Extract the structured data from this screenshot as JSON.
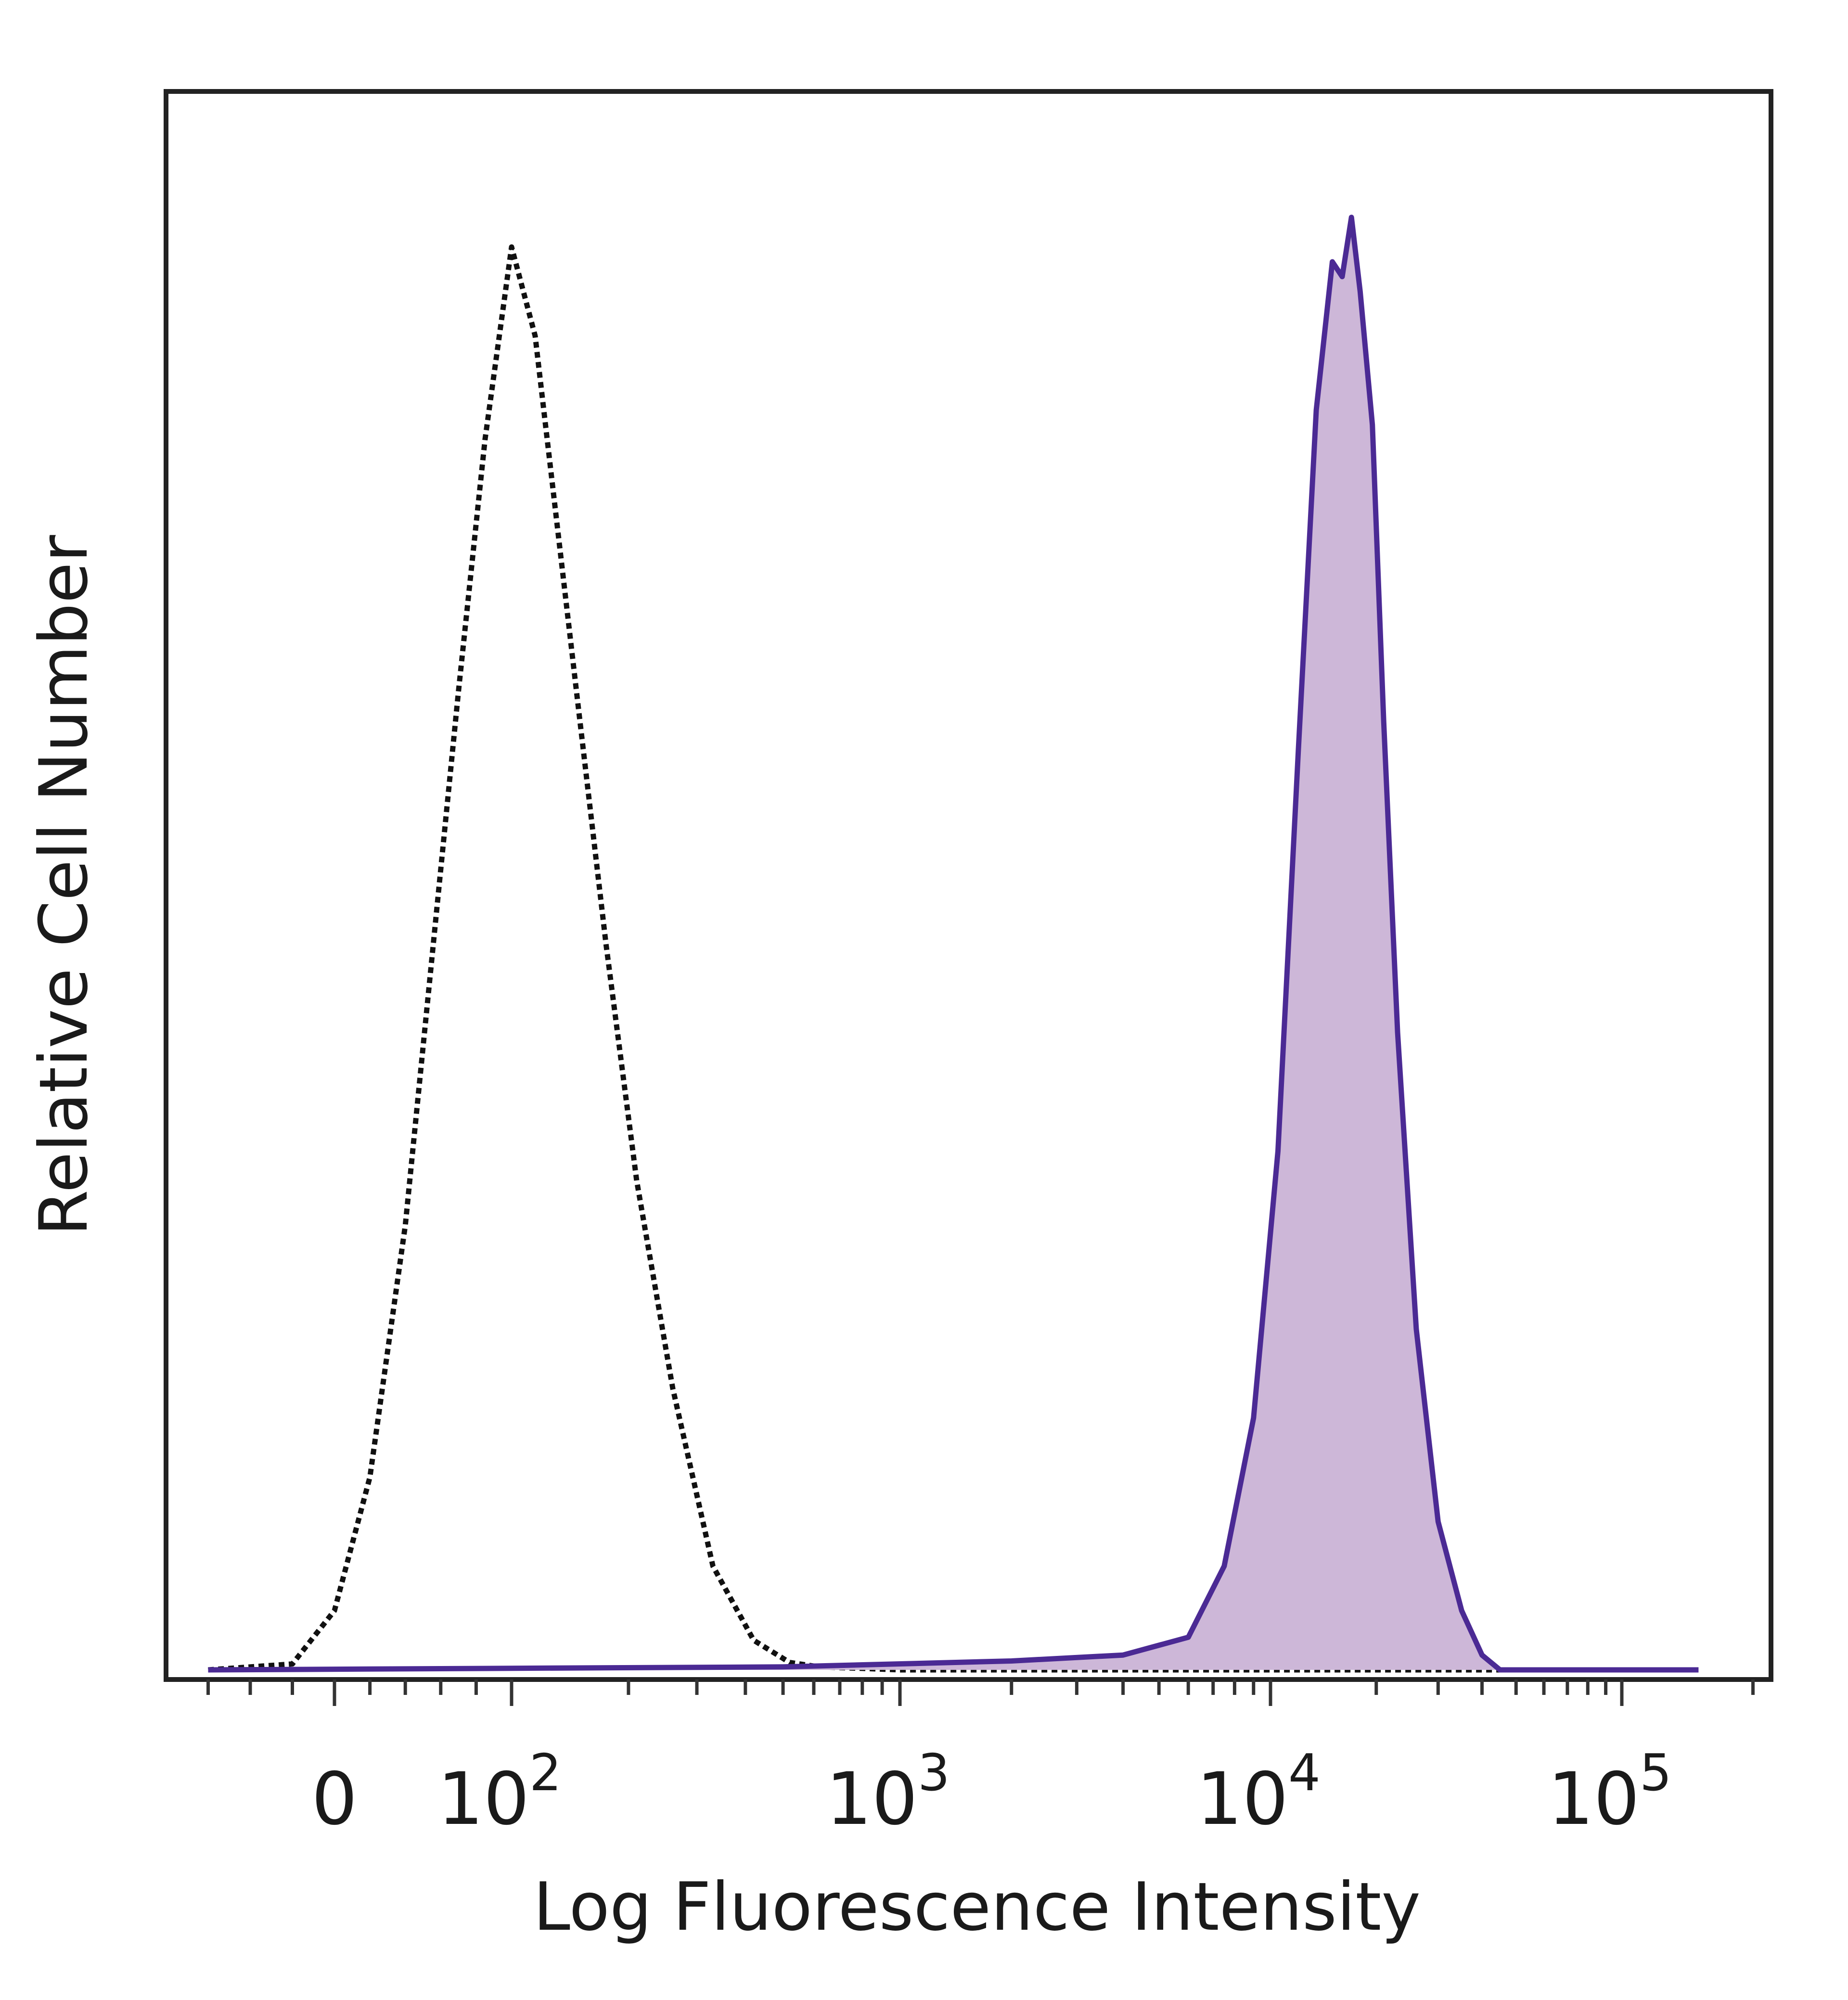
{
  "chart_data": {
    "type": "area",
    "xlabel": "Log Fluorescence Intensity",
    "ylabel": "Relative Cell Number",
    "x_scale": "biexponential",
    "xlim": [
      -80,
      220000
    ],
    "ylim": [
      0,
      100
    ],
    "grid": false,
    "x_ticks": [
      {
        "value": 0,
        "base": "0",
        "exp": ""
      },
      {
        "value": 100,
        "base": "10",
        "exp": "2"
      },
      {
        "value": 1000,
        "base": "10",
        "exp": "3"
      },
      {
        "value": 10000,
        "base": "10",
        "exp": "4"
      },
      {
        "value": 100000,
        "base": "10",
        "exp": "5"
      }
    ],
    "series": [
      {
        "style": "dotted-outline",
        "color": "#111111",
        "x": [
          -60,
          -20,
          0,
          20,
          40,
          55,
          70,
          85,
          100,
          115,
          130,
          150,
          175,
          210,
          260,
          330,
          420,
          520,
          620,
          800,
          1000,
          2000,
          5000,
          10000,
          100000
        ],
        "y": [
          0,
          0.4,
          4,
          13,
          30,
          48,
          66,
          83,
          96,
          90,
          78,
          64,
          49,
          33,
          19,
          7,
          2,
          0.5,
          0.2,
          0.1,
          0,
          0,
          0,
          0,
          0
        ]
      },
      {
        "style": "filled",
        "color": "#4b2a94",
        "fill": "#cdb7d8",
        "x": [
          -60,
          500,
          2000,
          4000,
          6000,
          7500,
          9000,
          10500,
          12000,
          13500,
          15000,
          16000,
          17000,
          18000,
          19500,
          21000,
          23000,
          26000,
          30000,
          35000,
          40000,
          45000,
          60000,
          150000
        ],
        "y": [
          0,
          0.2,
          0.6,
          1,
          2.2,
          7,
          17,
          35,
          62,
          85,
          95,
          94,
          98,
          93,
          84,
          64,
          43,
          23,
          10,
          4,
          1,
          0,
          0,
          0
        ]
      }
    ]
  }
}
